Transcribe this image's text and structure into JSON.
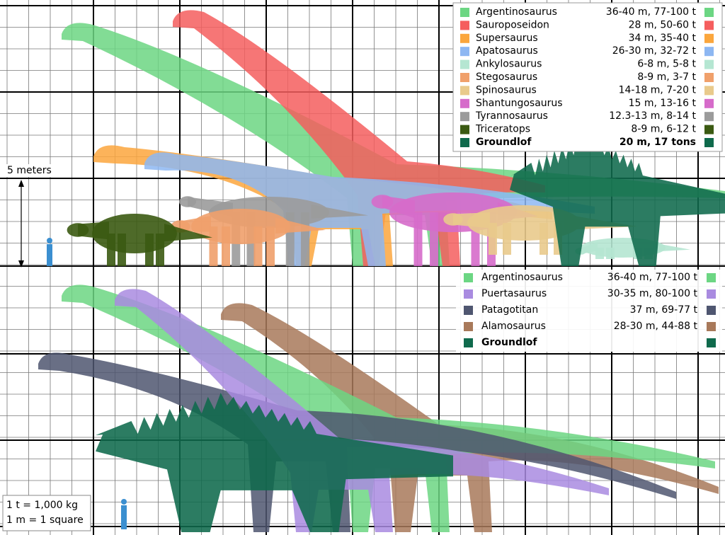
{
  "scale_label": "5 meters",
  "top_legend": [
    {
      "name": "Argentinosaurus",
      "stats": "36-40 m, 77-100 t",
      "color": "#6cd683"
    },
    {
      "name": "Sauroposeidon",
      "stats": "28 m, 50-60 t",
      "color": "#f55e5e"
    },
    {
      "name": "Supersaurus",
      "stats": "34 m, 35-40 t",
      "color": "#fba63d"
    },
    {
      "name": "Apatosaurus",
      "stats": "26-30 m, 32-72 t",
      "color": "#8db7f2"
    },
    {
      "name": "Ankylosaurus",
      "stats": "6-8 m, 5-8 t",
      "color": "#b5e6d2"
    },
    {
      "name": "Stegosaurus",
      "stats": "8-9 m, 3-7 t",
      "color": "#f0a06b"
    },
    {
      "name": "Spinosaurus",
      "stats": "14-18 m, 7-20 t",
      "color": "#e9ca8c"
    },
    {
      "name": "Shantungosaurus",
      "stats": "15 m, 13-16 t",
      "color": "#d66bca"
    },
    {
      "name": "Tyrannosaurus",
      "stats": "12.3-13 m, 8-14 t",
      "color": "#9b9b9b"
    },
    {
      "name": "Triceratops",
      "stats": "8-9 m, 6-12 t",
      "color": "#3b5a12"
    },
    {
      "name": "Groundlof",
      "stats": "20 m, 17 tons",
      "color": "#0f6a4c"
    }
  ],
  "bottom_legend": [
    {
      "name": "Argentinosaurus",
      "stats": "36-40 m, 77-100 t",
      "color": "#6cd683"
    },
    {
      "name": "Puertasaurus",
      "stats": "30-35 m, 80-100 t",
      "color": "#a98be0"
    },
    {
      "name": "Patagotitan",
      "stats": "37 m, 69-77 t",
      "color": "#4f5670"
    },
    {
      "name": "Alamosaurus",
      "stats": "28-30 m, 44-88 t",
      "color": "#a8795a"
    },
    {
      "name": "Groundlof",
      "stats": "",
      "color": "#0f6a4c"
    }
  ],
  "notes": [
    "1 t = 1,000 kg",
    "1 m = 1 square"
  ]
}
